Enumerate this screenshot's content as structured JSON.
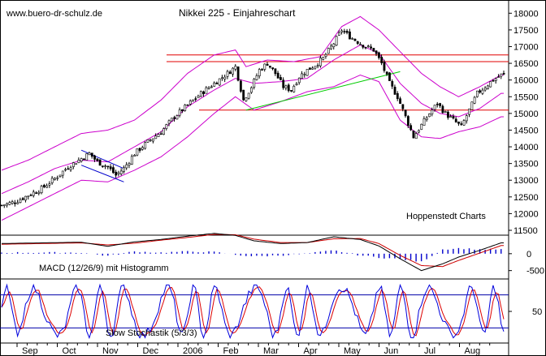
{
  "site": "www.buero-dr-schulz.de",
  "chart_data": [
    {
      "id": "price",
      "type": "candlestick",
      "title": "Nikkei 225 - Einjahreschart",
      "annotation": "Hoppenstedt Charts",
      "ylim": [
        11500,
        18250
      ],
      "y_ticks": [
        "18000",
        "17500",
        "17000",
        "16500",
        "16000",
        "15500",
        "15000",
        "14500",
        "14000",
        "13500",
        "13000",
        "12500",
        "12000",
        "11500"
      ],
      "y_tick_values": [
        18000,
        17500,
        17000,
        16500,
        16000,
        15500,
        15000,
        14500,
        14000,
        13500,
        13000,
        12500,
        12000,
        11500
      ],
      "x_ticks": [
        "Sep",
        "Oct",
        "Nov",
        "Dec",
        "2006",
        "Feb",
        "Mar",
        "Apr",
        "May",
        "Jun",
        "Jul",
        "Aug"
      ],
      "close_path": [
        [
          0,
          12250
        ],
        [
          5,
          12350
        ],
        [
          10,
          12550
        ],
        [
          15,
          12750
        ],
        [
          20,
          13050
        ],
        [
          25,
          13400
        ],
        [
          30,
          13650
        ],
        [
          33,
          13800
        ],
        [
          36,
          13550
        ],
        [
          40,
          13400
        ],
        [
          43,
          13150
        ],
        [
          46,
          13350
        ],
        [
          50,
          13800
        ],
        [
          55,
          14150
        ],
        [
          60,
          14450
        ],
        [
          65,
          14900
        ],
        [
          70,
          15250
        ],
        [
          75,
          15600
        ],
        [
          80,
          15900
        ],
        [
          85,
          16200
        ],
        [
          88,
          16400
        ],
        [
          91,
          15400
        ],
        [
          94,
          15800
        ],
        [
          97,
          16300
        ],
        [
          100,
          16500
        ],
        [
          103,
          16200
        ],
        [
          106,
          15800
        ],
        [
          109,
          15700
        ],
        [
          112,
          16100
        ],
        [
          115,
          16300
        ],
        [
          118,
          16450
        ],
        [
          121,
          16650
        ],
        [
          125,
          17100
        ],
        [
          128,
          17500
        ],
        [
          131,
          17300
        ],
        [
          134,
          17150
        ],
        [
          137,
          17000
        ],
        [
          140,
          16900
        ],
        [
          143,
          16500
        ],
        [
          146,
          15900
        ],
        [
          149,
          15500
        ],
        [
          152,
          14900
        ],
        [
          155,
          14300
        ],
        [
          158,
          14650
        ],
        [
          161,
          15000
        ],
        [
          164,
          15300
        ],
        [
          167,
          15000
        ],
        [
          170,
          14800
        ],
        [
          173,
          14600
        ],
        [
          176,
          15100
        ],
        [
          179,
          15600
        ],
        [
          182,
          15800
        ],
        [
          185,
          16000
        ],
        [
          188,
          16150
        ]
      ],
      "upper_band": [
        [
          0,
          13300
        ],
        [
          10,
          13600
        ],
        [
          20,
          14000
        ],
        [
          30,
          14400
        ],
        [
          40,
          14500
        ],
        [
          50,
          14800
        ],
        [
          60,
          15400
        ],
        [
          70,
          16200
        ],
        [
          80,
          16750
        ],
        [
          88,
          16900
        ],
        [
          92,
          16400
        ],
        [
          100,
          16600
        ],
        [
          110,
          16550
        ],
        [
          120,
          16700
        ],
        [
          128,
          17600
        ],
        [
          135,
          17900
        ],
        [
          142,
          17500
        ],
        [
          150,
          16850
        ],
        [
          158,
          16200
        ],
        [
          165,
          15800
        ],
        [
          172,
          15500
        ],
        [
          180,
          15800
        ],
        [
          188,
          16150
        ]
      ],
      "middle_band": [
        [
          0,
          12600
        ],
        [
          10,
          12950
        ],
        [
          20,
          13350
        ],
        [
          30,
          13600
        ],
        [
          40,
          13550
        ],
        [
          50,
          14000
        ],
        [
          60,
          14450
        ],
        [
          70,
          15200
        ],
        [
          80,
          15700
        ],
        [
          88,
          16050
        ],
        [
          95,
          15900
        ],
        [
          105,
          15950
        ],
        [
          115,
          16050
        ],
        [
          125,
          16600
        ],
        [
          135,
          17050
        ],
        [
          142,
          16800
        ],
        [
          150,
          15900
        ],
        [
          158,
          15300
        ],
        [
          165,
          15000
        ],
        [
          172,
          14900
        ],
        [
          180,
          15150
        ],
        [
          188,
          15600
        ]
      ],
      "lower_band": [
        [
          0,
          11800
        ],
        [
          10,
          12200
        ],
        [
          20,
          12600
        ],
        [
          30,
          13000
        ],
        [
          40,
          12950
        ],
        [
          50,
          13300
        ],
        [
          60,
          13700
        ],
        [
          70,
          14300
        ],
        [
          80,
          15000
        ],
        [
          88,
          15500
        ],
        [
          95,
          15100
        ],
        [
          105,
          15350
        ],
        [
          115,
          15650
        ],
        [
          125,
          15800
        ],
        [
          135,
          16150
        ],
        [
          142,
          15950
        ],
        [
          150,
          14800
        ],
        [
          158,
          14300
        ],
        [
          165,
          14250
        ],
        [
          172,
          14450
        ],
        [
          180,
          14600
        ],
        [
          188,
          14900
        ]
      ],
      "resistance_lines": [
        16750,
        16550
      ],
      "support_line": 15100,
      "green_trendline": [
        [
          92,
          15100
        ],
        [
          150,
          16250
        ]
      ],
      "flag_channel": [
        [
          [
            30,
            13900
          ],
          [
            46,
            13350
          ]
        ],
        [
          [
            30,
            13450
          ],
          [
            46,
            12950
          ]
        ]
      ],
      "colors": {
        "candle_up": "#000000",
        "band": "#cc00cc",
        "resistance": "#e00000",
        "support": "#e00000",
        "trend": "#00cc00",
        "flag": "#0000cc"
      }
    },
    {
      "id": "macd",
      "type": "line+histogram",
      "label": "MACD (12/26/9) mit Histogramm",
      "y_ticks": [
        "0",
        "-500"
      ],
      "y_tick_values": [
        0,
        -500
      ],
      "ylim": [
        -700,
        500
      ],
      "macd": [
        [
          0,
          300
        ],
        [
          15,
          320
        ],
        [
          30,
          340
        ],
        [
          40,
          220
        ],
        [
          50,
          350
        ],
        [
          60,
          420
        ],
        [
          70,
          520
        ],
        [
          80,
          600
        ],
        [
          88,
          540
        ],
        [
          95,
          380
        ],
        [
          105,
          300
        ],
        [
          115,
          330
        ],
        [
          125,
          500
        ],
        [
          135,
          420
        ],
        [
          142,
          230
        ],
        [
          150,
          -150
        ],
        [
          158,
          -500
        ],
        [
          166,
          -300
        ],
        [
          172,
          -100
        ],
        [
          180,
          100
        ],
        [
          188,
          320
        ]
      ],
      "signal": [
        [
          0,
          280
        ],
        [
          15,
          300
        ],
        [
          30,
          320
        ],
        [
          40,
          260
        ],
        [
          50,
          310
        ],
        [
          60,
          400
        ],
        [
          70,
          480
        ],
        [
          80,
          570
        ],
        [
          88,
          560
        ],
        [
          95,
          430
        ],
        [
          105,
          330
        ],
        [
          115,
          330
        ],
        [
          125,
          440
        ],
        [
          135,
          450
        ],
        [
          142,
          300
        ],
        [
          150,
          -50
        ],
        [
          158,
          -350
        ],
        [
          166,
          -380
        ],
        [
          172,
          -200
        ],
        [
          180,
          20
        ],
        [
          188,
          240
        ]
      ],
      "colors": {
        "macd": "#000000",
        "signal": "#cc0000",
        "histogram": "#0000cc"
      }
    },
    {
      "id": "stoch",
      "type": "line",
      "label": "Slow Stochastik (5/3/3)",
      "y_ticks": [
        "50"
      ],
      "y_tick_values": [
        50
      ],
      "ylim": [
        0,
        100
      ],
      "ref_lines": [
        80,
        20
      ],
      "colors": {
        "k": "#0000dd",
        "d": "#dd0000",
        "ref": "#0000aa"
      }
    }
  ]
}
